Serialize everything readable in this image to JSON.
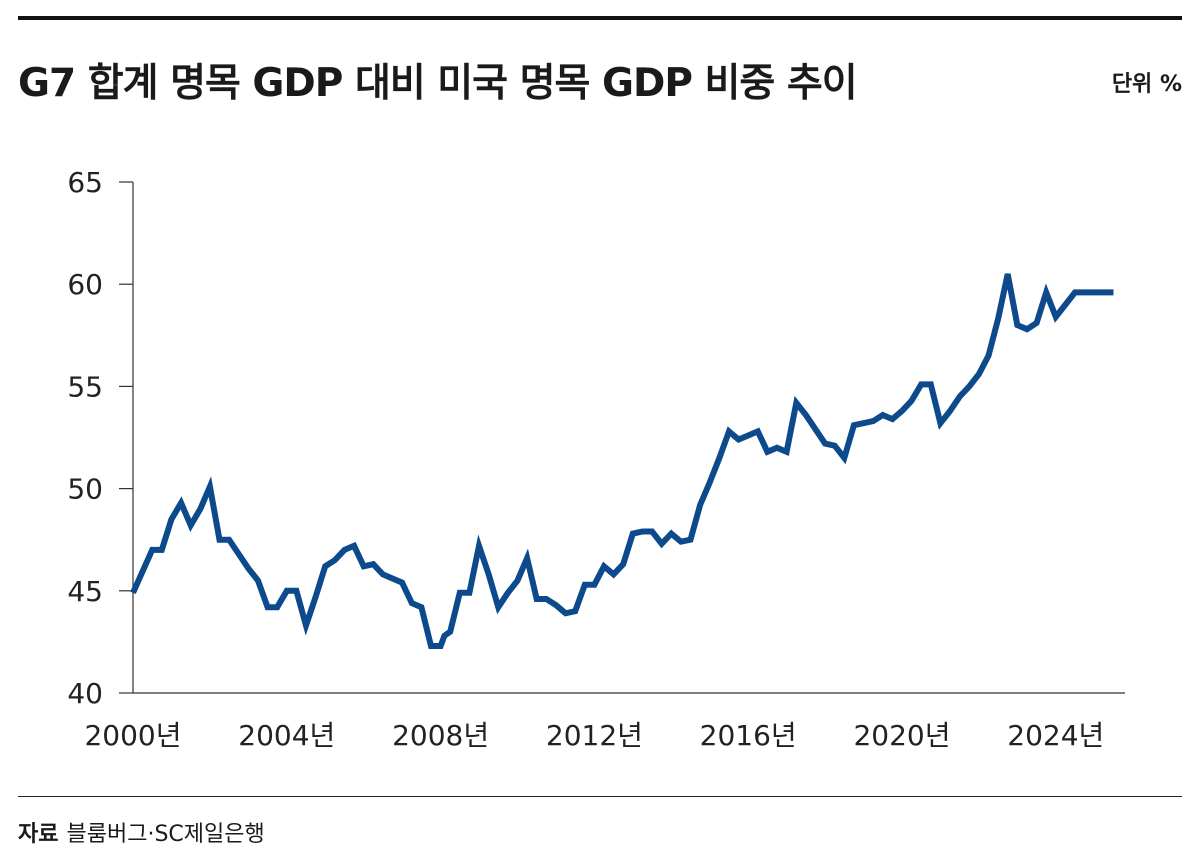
{
  "title": "G7 합계 명목 GDP 대비 미국 명목 GDP 비중 추이",
  "unit": "단위 %",
  "source": {
    "label": "자료",
    "text": "블룸버그·SC제일은행"
  },
  "colors": {
    "line": "#0d4a8c",
    "axis": "#333333"
  },
  "chart_data": {
    "type": "line",
    "title": "G7 합계 명목 GDP 대비 미국 명목 GDP 비중 추이",
    "xlabel": "",
    "ylabel": "",
    "ylim": [
      40,
      65
    ],
    "yticks": [
      "40",
      "45",
      "50",
      "55",
      "60",
      "65"
    ],
    "xlim": [
      2000.0,
      2025.8
    ],
    "xticks": [
      {
        "value": 2000,
        "label": "2000년"
      },
      {
        "value": 2004,
        "label": "2004년"
      },
      {
        "value": 2008,
        "label": "2008년"
      },
      {
        "value": 2012,
        "label": "2012년"
      },
      {
        "value": 2016,
        "label": "2016년"
      },
      {
        "value": 2020,
        "label": "2020년"
      },
      {
        "value": 2024,
        "label": "2024년"
      }
    ],
    "grid": false,
    "x": [
      2000.0,
      2000.5,
      2000.75,
      2001.0,
      2001.25,
      2001.5,
      2001.75,
      2002.0,
      2002.25,
      2002.5,
      2002.75,
      2003.0,
      2003.25,
      2003.5,
      2003.75,
      2004.0,
      2004.25,
      2004.5,
      2004.75,
      2005.0,
      2005.25,
      2005.5,
      2005.75,
      2006.0,
      2006.25,
      2006.5,
      2006.75,
      2007.0,
      2007.25,
      2007.5,
      2007.75,
      2008.0,
      2008.1,
      2008.25,
      2008.5,
      2008.75,
      2009.0,
      2009.25,
      2009.5,
      2009.75,
      2010.0,
      2010.25,
      2010.5,
      2010.75,
      2011.0,
      2011.25,
      2011.5,
      2011.75,
      2012.0,
      2012.25,
      2012.5,
      2012.75,
      2013.0,
      2013.25,
      2013.5,
      2013.75,
      2014.0,
      2014.25,
      2014.5,
      2014.75,
      2015.0,
      2015.25,
      2015.5,
      2015.75,
      2016.0,
      2016.25,
      2016.5,
      2016.75,
      2017.0,
      2017.25,
      2017.5,
      2017.75,
      2018.0,
      2018.25,
      2018.5,
      2018.75,
      2019.0,
      2019.25,
      2019.5,
      2019.75,
      2020.0,
      2020.25,
      2020.5,
      2020.75,
      2021.0,
      2021.25,
      2021.5,
      2021.75,
      2022.0,
      2022.25,
      2022.5,
      2022.75,
      2023.0,
      2023.25,
      2023.5,
      2023.75,
      2024.0,
      2024.25,
      2024.5,
      2024.75,
      2025.0,
      2025.25,
      2025.5
    ],
    "series": [
      {
        "values": [
          44.9,
          47.0,
          47.0,
          48.5,
          49.3,
          48.2,
          49.0,
          50.1,
          47.5,
          47.5,
          46.8,
          46.1,
          45.5,
          44.2,
          44.2,
          45.0,
          45.0,
          43.3,
          44.7,
          46.2,
          46.5,
          47.0,
          47.2,
          46.2,
          46.3,
          45.8,
          45.6,
          45.4,
          44.4,
          44.2,
          42.3,
          42.3,
          42.8,
          43.0,
          44.9,
          44.9,
          47.2,
          45.8,
          44.2,
          44.9,
          45.5,
          46.6,
          44.6,
          44.6,
          44.3,
          43.9,
          44.0,
          45.3,
          45.3,
          46.2,
          45.8,
          46.3,
          47.8,
          47.9,
          47.9,
          47.3,
          47.8,
          47.4,
          47.5,
          49.2,
          50.3,
          51.5,
          52.8,
          52.4,
          52.6,
          52.8,
          51.8,
          52.0,
          51.8,
          54.2,
          53.6,
          52.9,
          52.2,
          52.1,
          51.5,
          53.1,
          53.2,
          53.3,
          53.6,
          53.4,
          53.8,
          54.3,
          55.1,
          55.1,
          53.2,
          53.8,
          54.5,
          55.0,
          55.6,
          56.5,
          58.3,
          60.5,
          58.0,
          57.8,
          58.1,
          59.6,
          58.4,
          59.0,
          59.6,
          59.6,
          59.6,
          59.6,
          59.6
        ]
      }
    ]
  }
}
